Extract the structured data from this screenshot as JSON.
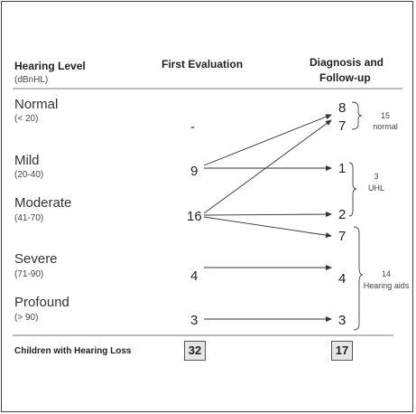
{
  "headers": {
    "hearing_level": "Hearing Level",
    "hearing_level_unit": "(dBnHL)",
    "first_evaluation": "First Evaluation",
    "diagnosis_line1": "Diagnosis and",
    "diagnosis_line2": "Follow-up"
  },
  "levels": [
    {
      "name": "Normal",
      "range": "(< 20)"
    },
    {
      "name": "Mild",
      "range": "(20-40)"
    },
    {
      "name": "Moderate",
      "range": "(41-70)"
    },
    {
      "name": "Severe",
      "range": "(71-90)"
    },
    {
      "name": "Profound",
      "range": "(> 90)"
    }
  ],
  "first_evaluation": {
    "normal": "-",
    "mild": "9",
    "moderate": "16",
    "severe": "4",
    "profound": "3"
  },
  "diagnosis": {
    "normal_a": "8",
    "normal_b": "7",
    "mild": "1",
    "moderate_a": "2",
    "moderate_b": "7",
    "severe": "4",
    "profound": "3"
  },
  "groups": {
    "normal_count": "15",
    "normal_label": "normal",
    "uhl_count": "3",
    "uhl_label": "UHL",
    "aids_count": "14",
    "aids_label": "Hearing aids"
  },
  "totals": {
    "label": "Children with Hearing Loss",
    "first": "32",
    "diagnosis": "17"
  }
}
